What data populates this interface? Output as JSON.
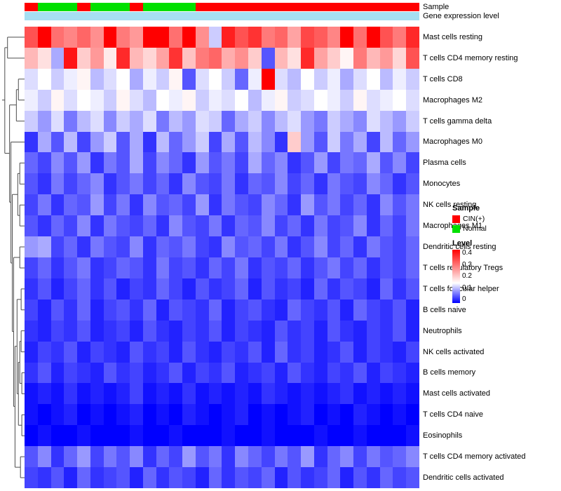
{
  "annotations": {
    "sample_label": "Sample",
    "expression_label": "Gene expression level",
    "expression_color": "#a6dff2"
  },
  "legends": {
    "sample": {
      "title": "Sample",
      "items": [
        {
          "label": "CIN(+)",
          "color": "#ff0000"
        },
        {
          "label": "Normal",
          "color": "#00e000"
        }
      ]
    },
    "level": {
      "title": "Level",
      "ticks": [
        "0.4",
        "0.3",
        "0.2",
        "0.1",
        "0"
      ]
    }
  },
  "chart_data": {
    "type": "heatmap",
    "rows": [
      "Mast cells resting",
      "T cells CD4 memory resting",
      "T cells CD8",
      "Macrophages M2",
      "T cells gamma delta",
      "Macrophages M0",
      "Plasma cells",
      "Monocytes",
      "NK cells resting",
      "Macrophages M1",
      "Dendritic cells resting",
      "T cells regulatory Tregs",
      "T cells follicular helper",
      "B cells naive",
      "Neutrophils",
      "NK cells activated",
      "B cells memory",
      "Mast cells activated",
      "T cells CD4 naive",
      "Eosinophils",
      "T cells CD4 memory activated",
      "Dendritic cells activated"
    ],
    "column_groups": [
      "CIN(+)",
      "Normal",
      "Normal",
      "Normal",
      "CIN(+)",
      "Normal",
      "Normal",
      "Normal",
      "CIN(+)",
      "Normal",
      "Normal",
      "Normal",
      "Normal",
      "CIN(+)",
      "CIN(+)",
      "CIN(+)",
      "CIN(+)",
      "CIN(+)",
      "CIN(+)",
      "CIN(+)",
      "CIN(+)",
      "CIN(+)",
      "CIN(+)",
      "CIN(+)",
      "CIN(+)",
      "CIN(+)",
      "CIN(+)",
      "CIN(+)",
      "CIN(+)",
      "CIN(+)"
    ],
    "values": [
      [
        0.32,
        0.43,
        0.29,
        0.27,
        0.3,
        0.26,
        0.42,
        0.28,
        0.25,
        0.4,
        0.43,
        0.29,
        0.42,
        0.26,
        0.12,
        0.37,
        0.32,
        0.35,
        0.28,
        0.3,
        0.24,
        0.33,
        0.31,
        0.27,
        0.4,
        0.29,
        0.42,
        0.32,
        0.28,
        0.36
      ],
      [
        0.22,
        0.18,
        0.1,
        0.38,
        0.2,
        0.25,
        0.17,
        0.36,
        0.22,
        0.19,
        0.24,
        0.35,
        0.21,
        0.28,
        0.3,
        0.23,
        0.26,
        0.2,
        0.05,
        0.22,
        0.18,
        0.36,
        0.24,
        0.2,
        0.16,
        0.28,
        0.22,
        0.25,
        0.19,
        0.32
      ],
      [
        0.13,
        0.15,
        0.12,
        0.14,
        0.16,
        0.11,
        0.13,
        0.15,
        0.1,
        0.14,
        0.12,
        0.16,
        0.05,
        0.13,
        0.15,
        0.12,
        0.06,
        0.14,
        0.42,
        0.13,
        0.11,
        0.15,
        0.12,
        0.14,
        0.1,
        0.13,
        0.15,
        0.11,
        0.14,
        0.12
      ],
      [
        0.14,
        0.12,
        0.16,
        0.13,
        0.15,
        0.14,
        0.12,
        0.16,
        0.13,
        0.11,
        0.15,
        0.14,
        0.16,
        0.12,
        0.14,
        0.13,
        0.15,
        0.11,
        0.14,
        0.16,
        0.12,
        0.13,
        0.15,
        0.14,
        0.12,
        0.16,
        0.13,
        0.14,
        0.15,
        0.13
      ],
      [
        0.12,
        0.09,
        0.13,
        0.07,
        0.11,
        0.13,
        0.08,
        0.12,
        0.1,
        0.13,
        0.07,
        0.11,
        0.09,
        0.13,
        0.12,
        0.06,
        0.1,
        0.12,
        0.08,
        0.11,
        0.13,
        0.09,
        0.07,
        0.12,
        0.1,
        0.08,
        0.13,
        0.11,
        0.09,
        0.12
      ],
      [
        0.03,
        0.1,
        0.05,
        0.11,
        0.04,
        0.09,
        0.12,
        0.05,
        0.1,
        0.03,
        0.11,
        0.06,
        0.09,
        0.12,
        0.04,
        0.1,
        0.05,
        0.11,
        0.08,
        0.03,
        0.2,
        0.09,
        0.05,
        0.12,
        0.07,
        0.1,
        0.04,
        0.11,
        0.06,
        0.09
      ],
      [
        0.06,
        0.04,
        0.08,
        0.05,
        0.09,
        0.03,
        0.07,
        0.05,
        0.1,
        0.04,
        0.08,
        0.06,
        0.03,
        0.09,
        0.05,
        0.07,
        0.04,
        0.1,
        0.06,
        0.08,
        0.03,
        0.05,
        0.09,
        0.04,
        0.07,
        0.06,
        0.1,
        0.05,
        0.08,
        0.04
      ],
      [
        0.05,
        0.03,
        0.07,
        0.04,
        0.06,
        0.08,
        0.03,
        0.05,
        0.07,
        0.04,
        0.06,
        0.03,
        0.08,
        0.05,
        0.04,
        0.07,
        0.03,
        0.06,
        0.05,
        0.08,
        0.04,
        0.06,
        0.03,
        0.07,
        0.05,
        0.04,
        0.08,
        0.06,
        0.03,
        0.05
      ],
      [
        0.04,
        0.07,
        0.03,
        0.06,
        0.05,
        0.09,
        0.04,
        0.07,
        0.03,
        0.08,
        0.05,
        0.06,
        0.04,
        0.09,
        0.03,
        0.07,
        0.05,
        0.04,
        0.08,
        0.06,
        0.03,
        0.09,
        0.05,
        0.07,
        0.04,
        0.06,
        0.03,
        0.08,
        0.05,
        0.07
      ],
      [
        0.05,
        0.03,
        0.06,
        0.04,
        0.08,
        0.03,
        0.07,
        0.05,
        0.04,
        0.06,
        0.03,
        0.08,
        0.05,
        0.04,
        0.07,
        0.03,
        0.06,
        0.05,
        0.08,
        0.04,
        0.06,
        0.03,
        0.07,
        0.04,
        0.05,
        0.08,
        0.03,
        0.06,
        0.04,
        0.07
      ],
      [
        0.09,
        0.1,
        0.04,
        0.06,
        0.03,
        0.07,
        0.05,
        0.04,
        0.08,
        0.03,
        0.06,
        0.05,
        0.07,
        0.04,
        0.03,
        0.08,
        0.05,
        0.06,
        0.04,
        0.07,
        0.03,
        0.05,
        0.08,
        0.04,
        0.06,
        0.03,
        0.07,
        0.05,
        0.04,
        0.06
      ],
      [
        0.04,
        0.06,
        0.03,
        0.05,
        0.07,
        0.03,
        0.04,
        0.06,
        0.05,
        0.03,
        0.07,
        0.04,
        0.05,
        0.03,
        0.06,
        0.04,
        0.07,
        0.03,
        0.05,
        0.04,
        0.06,
        0.03,
        0.05,
        0.07,
        0.04,
        0.06,
        0.03,
        0.05,
        0.04,
        0.06
      ],
      [
        0.03,
        0.05,
        0.02,
        0.04,
        0.06,
        0.03,
        0.05,
        0.02,
        0.04,
        0.03,
        0.06,
        0.04,
        0.02,
        0.05,
        0.03,
        0.04,
        0.06,
        0.02,
        0.05,
        0.03,
        0.04,
        0.02,
        0.06,
        0.03,
        0.05,
        0.04,
        0.02,
        0.06,
        0.03,
        0.05
      ],
      [
        0.04,
        0.02,
        0.05,
        0.03,
        0.06,
        0.02,
        0.04,
        0.05,
        0.03,
        0.06,
        0.02,
        0.05,
        0.04,
        0.03,
        0.06,
        0.02,
        0.04,
        0.05,
        0.03,
        0.02,
        0.06,
        0.04,
        0.03,
        0.05,
        0.02,
        0.06,
        0.04,
        0.03,
        0.05,
        0.02
      ],
      [
        0.03,
        0.02,
        0.04,
        0.03,
        0.05,
        0.02,
        0.03,
        0.04,
        0.02,
        0.05,
        0.03,
        0.02,
        0.04,
        0.03,
        0.05,
        0.02,
        0.04,
        0.03,
        0.02,
        0.05,
        0.03,
        0.04,
        0.02,
        0.05,
        0.03,
        0.02,
        0.04,
        0.03,
        0.05,
        0.02
      ],
      [
        0.02,
        0.04,
        0.03,
        0.05,
        0.02,
        0.04,
        0.03,
        0.02,
        0.05,
        0.03,
        0.04,
        0.02,
        0.05,
        0.03,
        0.02,
        0.04,
        0.03,
        0.05,
        0.02,
        0.06,
        0.03,
        0.04,
        0.02,
        0.03,
        0.05,
        0.02,
        0.04,
        0.03,
        0.02,
        0.04
      ],
      [
        0.03,
        0.05,
        0.02,
        0.04,
        0.03,
        0.02,
        0.05,
        0.03,
        0.04,
        0.02,
        0.03,
        0.05,
        0.02,
        0.04,
        0.03,
        0.05,
        0.02,
        0.03,
        0.04,
        0.02,
        0.05,
        0.03,
        0.02,
        0.04,
        0.03,
        0.05,
        0.02,
        0.04,
        0.03,
        0.02
      ],
      [
        0.01,
        0.02,
        0.01,
        0.03,
        0.01,
        0.02,
        0.01,
        0.02,
        0.04,
        0.01,
        0.02,
        0.01,
        0.03,
        0.01,
        0.02,
        0.01,
        0.02,
        0.01,
        0.03,
        0.02,
        0.01,
        0.02,
        0.01,
        0.02,
        0.03,
        0.01,
        0.02,
        0.01,
        0.02,
        0.01
      ],
      [
        0.01,
        0.0,
        0.01,
        0.02,
        0.0,
        0.01,
        0.0,
        0.01,
        0.02,
        0.0,
        0.01,
        0.0,
        0.02,
        0.01,
        0.0,
        0.01,
        0.02,
        0.0,
        0.01,
        0.0,
        0.01,
        0.02,
        0.0,
        0.01,
        0.0,
        0.02,
        0.01,
        0.0,
        0.01,
        0.0
      ],
      [
        0.0,
        0.01,
        0.0,
        0.0,
        0.01,
        0.0,
        0.0,
        0.0,
        0.01,
        0.0,
        0.0,
        0.01,
        0.0,
        0.0,
        0.0,
        0.01,
        0.0,
        0.0,
        0.01,
        0.0,
        0.0,
        0.0,
        0.01,
        0.0,
        0.0,
        0.01,
        0.0,
        0.0,
        0.0,
        0.01
      ],
      [
        0.05,
        0.08,
        0.03,
        0.06,
        0.09,
        0.04,
        0.07,
        0.05,
        0.08,
        0.03,
        0.06,
        0.04,
        0.09,
        0.05,
        0.07,
        0.03,
        0.08,
        0.06,
        0.04,
        0.07,
        0.05,
        0.09,
        0.03,
        0.06,
        0.08,
        0.04,
        0.07,
        0.05,
        0.06,
        0.08
      ],
      [
        0.04,
        0.03,
        0.05,
        0.02,
        0.06,
        0.03,
        0.04,
        0.05,
        0.02,
        0.06,
        0.03,
        0.05,
        0.04,
        0.02,
        0.06,
        0.03,
        0.05,
        0.04,
        0.06,
        0.02,
        0.05,
        0.03,
        0.04,
        0.06,
        0.02,
        0.05,
        0.03,
        0.06,
        0.04,
        0.05
      ]
    ],
    "colorscale": {
      "min": 0,
      "mid": 0.15,
      "max": 0.4,
      "min_color": "#0000ff",
      "mid_color": "#ffffff",
      "max_color": "#ff0000"
    },
    "legend_position": "right",
    "row_dendrogram": true,
    "xlabel": "",
    "ylabel": "",
    "title": ""
  }
}
